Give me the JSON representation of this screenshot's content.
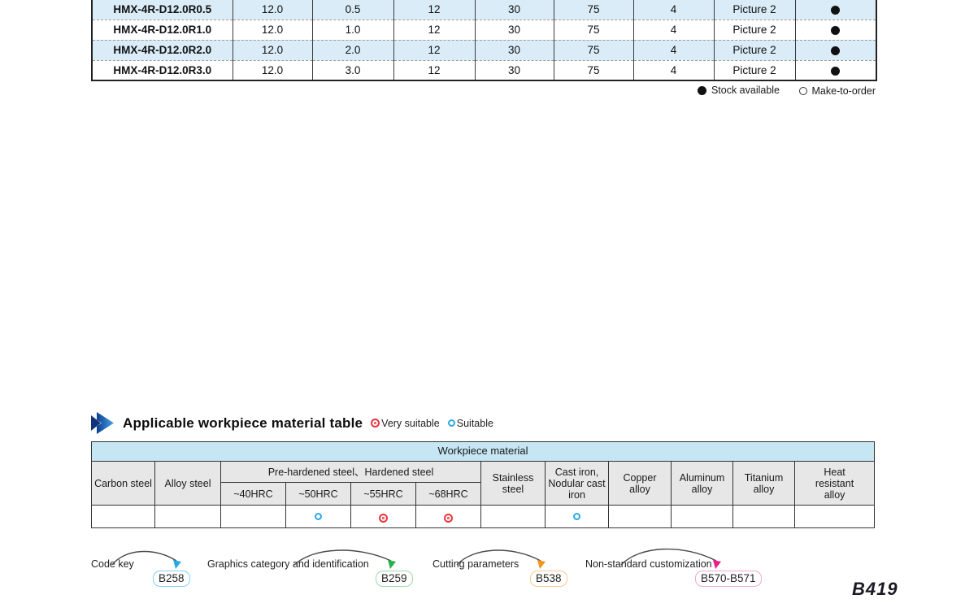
{
  "colors": {
    "row_highlight": "#d9ecf7",
    "header_blue": "#c6e6f3",
    "header_gray": "#e7e7e7",
    "suitable_blue": "#2aaae2",
    "very_suitable_red": "#e8333a",
    "stock_dot": "#111111"
  },
  "product_table": {
    "rows": [
      {
        "model": "HMX-4R-D12.0R0.5",
        "values": [
          "12.0",
          "0.5",
          "12",
          "30",
          "75",
          "4",
          "Picture 2"
        ],
        "stock": "stock-available"
      },
      {
        "model": "HMX-4R-D12.0R1.0",
        "values": [
          "12.0",
          "1.0",
          "12",
          "30",
          "75",
          "4",
          "Picture 2"
        ],
        "stock": "stock-available"
      },
      {
        "model": "HMX-4R-D12.0R2.0",
        "values": [
          "12.0",
          "2.0",
          "12",
          "30",
          "75",
          "4",
          "Picture 2"
        ],
        "stock": "stock-available"
      },
      {
        "model": "HMX-4R-D12.0R3.0",
        "values": [
          "12.0",
          "3.0",
          "12",
          "30",
          "75",
          "4",
          "Picture 2"
        ],
        "stock": "stock-available"
      }
    ]
  },
  "stock_legend": {
    "stock_label": "Stock available",
    "mto_label": "Make-to-order"
  },
  "section": {
    "title": "Applicable workpiece material table",
    "very_suitable_label": "Very suitable",
    "suitable_label": "Suitable"
  },
  "workpiece_table": {
    "title": "Workpiece material",
    "col_carbon": "Carbon steel",
    "col_alloy": "Alloy steel",
    "col_prehardened_group": "Pre-hardened steel、Hardened steel",
    "col_hrc40": "~40HRC",
    "col_hrc50": "~50HRC",
    "col_hrc55": "~55HRC",
    "col_hrc68": "~68HRC",
    "col_stainless": "Stainless steel",
    "col_cast_iron": "Cast iron, Nodular cast iron",
    "col_copper": "Copper alloy",
    "col_aluminum": "Aluminum alloy",
    "col_titanium": "Titanium alloy",
    "col_heat_resistant": "Heat resistant alloy",
    "ratings": {
      "carbon": "",
      "alloy": "",
      "hrc40": "",
      "hrc50": "suitable",
      "hrc55": "very-suitable",
      "hrc68": "very-suitable",
      "stainless": "",
      "cast_iron": "suitable",
      "copper": "",
      "aluminum": "",
      "titanium": "",
      "heat_resistant": ""
    }
  },
  "links": [
    {
      "label": "Code key",
      "page": "B258",
      "arrow_color": "#2aaae2",
      "badge_border": "#7fd2ef"
    },
    {
      "label": "Graphics category and identification",
      "page": "B259",
      "arrow_color": "#27b24b",
      "badge_border": "#9cd9ab"
    },
    {
      "label": "Cutting parameters",
      "page": "B538",
      "arrow_color": "#f7941e",
      "badge_border": "#f8c98e"
    },
    {
      "label": "Non-standard customization",
      "page": "B570-B571",
      "arrow_color": "#ec1e8c",
      "badge_border": "#f3a8cb"
    }
  ],
  "page_number": "B419"
}
